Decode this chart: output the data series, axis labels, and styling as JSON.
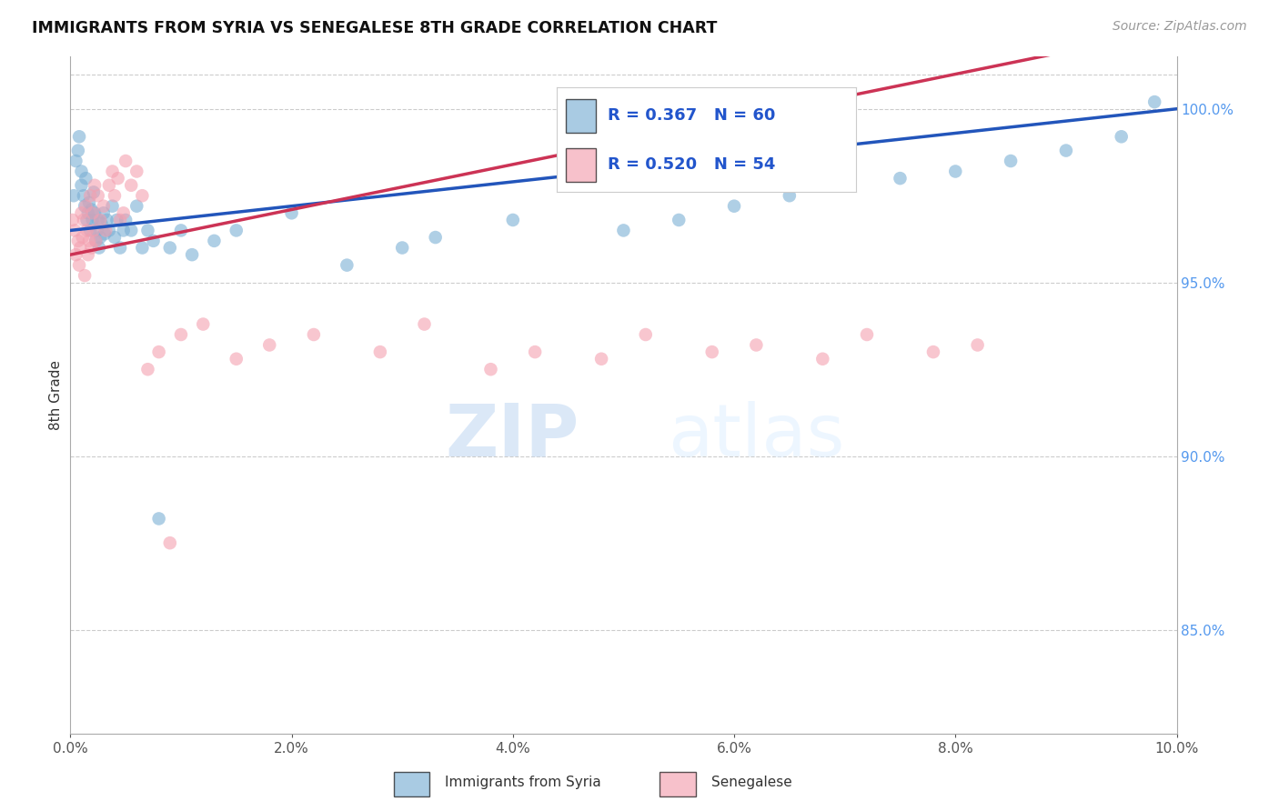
{
  "title": "IMMIGRANTS FROM SYRIA VS SENEGALESE 8TH GRADE CORRELATION CHART",
  "source": "Source: ZipAtlas.com",
  "ylabel": "8th Grade",
  "watermark_zip": "ZIP",
  "watermark_atlas": "atlas",
  "xlim": [
    0.0,
    10.0
  ],
  "ylim": [
    82.0,
    101.5
  ],
  "yticks": [
    85.0,
    90.0,
    95.0,
    100.0
  ],
  "xtick_positions": [
    0.0,
    2.0,
    4.0,
    6.0,
    8.0,
    10.0
  ],
  "legend_syria_R": "0.367",
  "legend_syria_N": "60",
  "legend_senegal_R": "0.520",
  "legend_senegal_N": "54",
  "syria_color": "#7bafd4",
  "senegal_color": "#f4a0b0",
  "syria_line_color": "#2255bb",
  "senegal_line_color": "#cc3355",
  "background_color": "#ffffff",
  "syria_x": [
    0.03,
    0.05,
    0.07,
    0.08,
    0.1,
    0.1,
    0.12,
    0.13,
    0.14,
    0.15,
    0.16,
    0.17,
    0.18,
    0.19,
    0.2,
    0.21,
    0.22,
    0.23,
    0.24,
    0.25,
    0.26,
    0.27,
    0.28,
    0.3,
    0.31,
    0.33,
    0.35,
    0.38,
    0.4,
    0.42,
    0.45,
    0.48,
    0.5,
    0.55,
    0.6,
    0.65,
    0.7,
    0.75,
    0.8,
    0.9,
    1.0,
    1.1,
    1.3,
    1.5,
    2.0,
    2.5,
    3.0,
    3.3,
    4.0,
    5.0,
    5.5,
    6.0,
    6.5,
    7.0,
    7.5,
    8.0,
    8.5,
    9.0,
    9.5,
    9.8
  ],
  "syria_y": [
    97.5,
    98.5,
    98.8,
    99.2,
    97.8,
    98.2,
    97.5,
    97.2,
    98.0,
    96.8,
    97.0,
    97.3,
    96.5,
    97.1,
    96.8,
    97.6,
    97.0,
    96.2,
    96.5,
    96.8,
    96.0,
    96.3,
    96.7,
    97.0,
    96.4,
    96.8,
    96.5,
    97.2,
    96.3,
    96.8,
    96.0,
    96.5,
    96.8,
    96.5,
    97.2,
    96.0,
    96.5,
    96.2,
    88.2,
    96.0,
    96.5,
    95.8,
    96.2,
    96.5,
    97.0,
    95.5,
    96.0,
    96.3,
    96.8,
    96.5,
    96.8,
    97.2,
    97.5,
    97.8,
    98.0,
    98.2,
    98.5,
    98.8,
    99.2,
    100.2
  ],
  "senegal_x": [
    0.02,
    0.04,
    0.05,
    0.07,
    0.08,
    0.09,
    0.1,
    0.11,
    0.12,
    0.13,
    0.14,
    0.15,
    0.16,
    0.17,
    0.18,
    0.19,
    0.2,
    0.21,
    0.22,
    0.23,
    0.25,
    0.27,
    0.3,
    0.32,
    0.35,
    0.38,
    0.4,
    0.43,
    0.45,
    0.48,
    0.5,
    0.55,
    0.6,
    0.65,
    0.7,
    0.8,
    0.9,
    1.0,
    1.2,
    1.5,
    1.8,
    2.2,
    2.8,
    3.2,
    3.8,
    4.2,
    4.8,
    5.2,
    5.8,
    6.2,
    6.8,
    7.2,
    7.8,
    8.2
  ],
  "senegal_y": [
    96.8,
    96.5,
    95.8,
    96.2,
    95.5,
    96.0,
    97.0,
    96.3,
    96.8,
    95.2,
    97.2,
    96.5,
    95.8,
    96.2,
    97.5,
    96.0,
    97.0,
    96.5,
    97.8,
    96.2,
    97.5,
    96.8,
    97.2,
    96.5,
    97.8,
    98.2,
    97.5,
    98.0,
    96.8,
    97.0,
    98.5,
    97.8,
    98.2,
    97.5,
    92.5,
    93.0,
    87.5,
    93.5,
    93.8,
    92.8,
    93.2,
    93.5,
    93.0,
    93.8,
    92.5,
    93.0,
    92.8,
    93.5,
    93.0,
    93.2,
    92.8,
    93.5,
    93.0,
    93.2
  ]
}
